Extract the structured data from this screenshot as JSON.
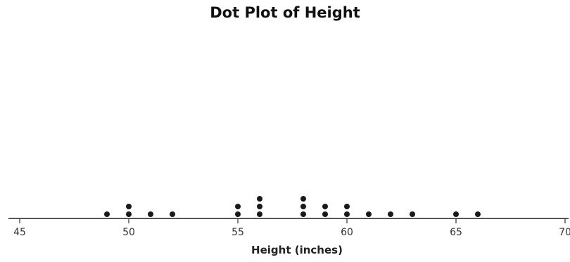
{
  "chart_data": {
    "type": "scatter",
    "subtype": "dot-plot",
    "title": "Dot Plot of Height",
    "xlabel": "Height (inches)",
    "ylabel": "",
    "xlim": [
      45,
      70
    ],
    "x_ticks": [
      45,
      50,
      55,
      60,
      65,
      70
    ],
    "x_tick_labels": [
      "45",
      "50",
      "55",
      "60",
      "65",
      "70"
    ],
    "grid": false,
    "legend": "none",
    "dot_color": "#1a1a1a",
    "axis_color": "#555555",
    "values": [
      {
        "x": 49,
        "count": 1
      },
      {
        "x": 50,
        "count": 2
      },
      {
        "x": 51,
        "count": 1
      },
      {
        "x": 52,
        "count": 1
      },
      {
        "x": 55,
        "count": 2
      },
      {
        "x": 56,
        "count": 3
      },
      {
        "x": 58,
        "count": 3
      },
      {
        "x": 59,
        "count": 2
      },
      {
        "x": 60,
        "count": 2
      },
      {
        "x": 61,
        "count": 1
      },
      {
        "x": 62,
        "count": 1
      },
      {
        "x": 63,
        "count": 1
      },
      {
        "x": 65,
        "count": 1
      },
      {
        "x": 66,
        "count": 1
      }
    ]
  }
}
